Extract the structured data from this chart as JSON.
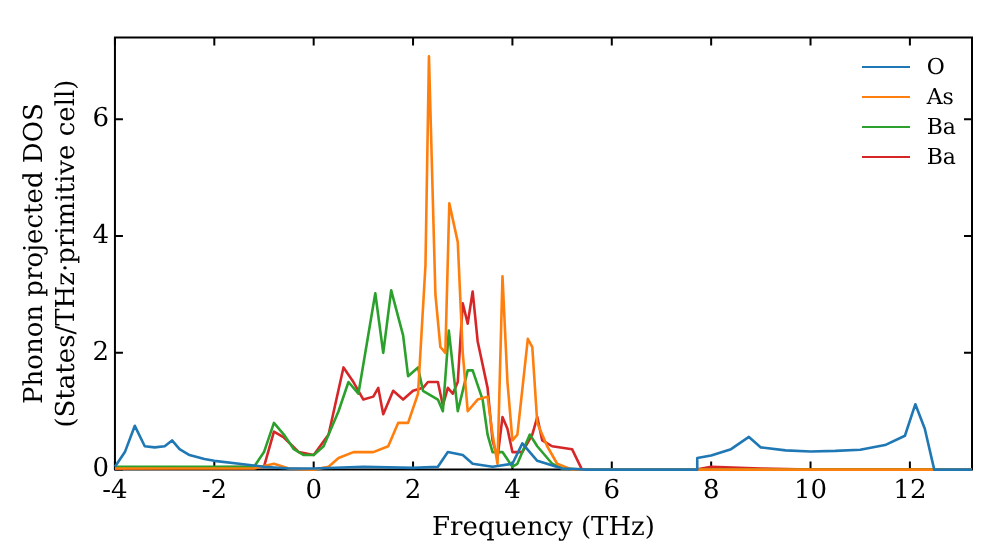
{
  "chart_data": {
    "type": "line",
    "xlabel": "Frequency (THz)",
    "ylabel": "Phonon projected DOS\n(States/THz·primitive cell)",
    "xlim": [
      -4,
      13.25
    ],
    "ylim": [
      0,
      7.4
    ],
    "xticks": [
      -4,
      -2,
      0,
      2,
      4,
      6,
      8,
      10,
      12
    ],
    "yticks": [
      0,
      2,
      4,
      6
    ],
    "legend": "top right",
    "marker": "none",
    "line_style": "solid",
    "series": [
      {
        "name": "O",
        "color": "#1f77b4",
        "x": [
          -4,
          -3.8,
          -3.6,
          -3.4,
          -3.2,
          -3,
          -2.85,
          -2.7,
          -2.5,
          -2.2,
          -2,
          -1.5,
          -1,
          -0.5,
          0,
          1,
          2,
          2.5,
          2.7,
          3,
          3.2,
          3.6,
          4,
          4.2,
          4.5,
          5,
          5.5,
          7.7,
          7.72,
          8,
          8.4,
          8.76,
          9,
          9.5,
          10,
          10.5,
          11,
          11.5,
          11.9,
          12.11,
          12.3,
          12.49,
          13.25
        ],
        "values": [
          0.05,
          0.3,
          0.75,
          0.4,
          0.38,
          0.4,
          0.5,
          0.35,
          0.25,
          0.18,
          0.15,
          0.1,
          0.05,
          0.02,
          0.02,
          0.05,
          0.03,
          0.05,
          0.3,
          0.25,
          0.1,
          0.05,
          0.1,
          0.45,
          0.15,
          0.02,
          0,
          0,
          0.2,
          0.24,
          0.35,
          0.56,
          0.38,
          0.33,
          0.31,
          0.32,
          0.34,
          0.42,
          0.58,
          1.12,
          0.7,
          0,
          0
        ]
      },
      {
        "name": "As",
        "color": "#ff7f0e",
        "x": [
          -4,
          -1.2,
          -0.8,
          -0.5,
          0,
          0.3,
          0.5,
          0.8,
          1.2,
          1.5,
          1.7,
          1.9,
          2.1,
          2.25,
          2.32,
          2.45,
          2.55,
          2.65,
          2.73,
          2.9,
          3,
          3.1,
          3.3,
          3.5,
          3.6,
          3.7,
          3.8,
          3.9,
          4,
          4.1,
          4.31,
          4.4,
          4.5,
          4.7,
          4.9,
          5.2,
          13.25
        ],
        "values": [
          0.02,
          0.02,
          0.1,
          0.02,
          0,
          0.05,
          0.2,
          0.3,
          0.3,
          0.4,
          0.8,
          0.8,
          1.3,
          3.5,
          7.08,
          3,
          2.1,
          2,
          4.56,
          3.9,
          2,
          1,
          1.2,
          1.25,
          0.6,
          0.1,
          3.31,
          1.5,
          0.5,
          0.6,
          2.24,
          2.1,
          0.8,
          0.4,
          0.1,
          0,
          0
        ]
      },
      {
        "name": "Ba",
        "color": "#2ca02c",
        "x": [
          -4,
          -1.2,
          -1,
          -0.8,
          -0.6,
          -0.4,
          -0.2,
          0,
          0.2,
          0.5,
          0.7,
          0.9,
          1.24,
          1.4,
          1.56,
          1.8,
          1.9,
          2.1,
          2.2,
          2.5,
          2.6,
          2.72,
          2.9,
          3.1,
          3.2,
          3.4,
          3.5,
          3.6,
          3.8,
          4,
          4.1,
          4.2,
          4.35,
          4.5,
          4.8,
          5,
          5.5,
          13.25
        ],
        "values": [
          0.05,
          0.05,
          0.3,
          0.8,
          0.6,
          0.35,
          0.25,
          0.25,
          0.4,
          1,
          1.5,
          1.3,
          3.02,
          2,
          3.07,
          2.3,
          1.6,
          1.75,
          1.35,
          1.2,
          1,
          2.38,
          1,
          1.7,
          1.7,
          1.2,
          0.6,
          0.3,
          0.3,
          0.05,
          0.1,
          0.3,
          0.6,
          0.4,
          0.1,
          0.02,
          0,
          0
        ]
      },
      {
        "name": "Ba",
        "color": "#d62728",
        "x": [
          -4,
          -1,
          -0.8,
          -0.6,
          -0.3,
          0,
          0.3,
          0.6,
          0.8,
          1,
          1.2,
          1.3,
          1.4,
          1.6,
          1.8,
          2,
          2.2,
          2.3,
          2.5,
          2.6,
          2.7,
          2.8,
          2.9,
          3,
          3.1,
          3.2,
          3.3,
          3.5,
          3.6,
          3.7,
          3.8,
          3.9,
          4,
          4.2,
          4.4,
          4.5,
          4.6,
          4.8,
          5.2,
          5.4,
          7.7,
          8,
          9,
          10,
          13.25
        ],
        "values": [
          0.02,
          0.05,
          0.65,
          0.55,
          0.3,
          0.25,
          0.6,
          1.75,
          1.5,
          1.2,
          1.25,
          1.4,
          0.95,
          1.35,
          1.2,
          1.35,
          1.4,
          1.5,
          1.5,
          1.1,
          1.4,
          1.3,
          1.5,
          2.85,
          2.5,
          3.05,
          2.2,
          1.4,
          0.5,
          0.2,
          0.9,
          0.7,
          0.3,
          0.3,
          0.6,
          0.9,
          0.5,
          0.4,
          0.35,
          0,
          0,
          0.05,
          0.02,
          0,
          0
        ]
      }
    ]
  }
}
